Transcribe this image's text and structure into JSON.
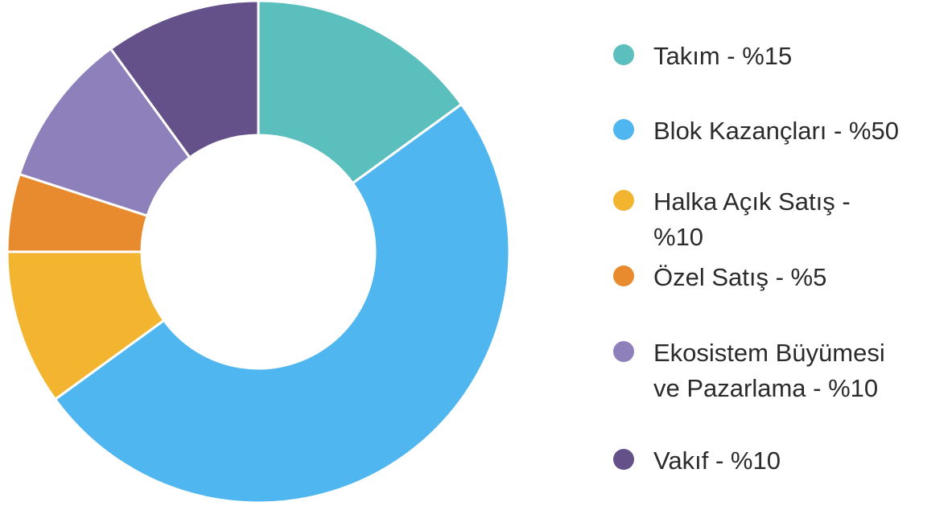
{
  "chart_data": {
    "type": "donut",
    "categories": [
      "Takım - %15",
      "Blok Kazançları - %50",
      "Halka Açık Satış - %10",
      "Özel Satış - %5",
      "Ekosistem Büyümesi ve Pazarlama - %10",
      "Vakıf - %10"
    ],
    "values": [
      15,
      50,
      10,
      5,
      10,
      10
    ],
    "colors": [
      "#5bbfbd",
      "#4fb6f0",
      "#f3b430",
      "#e88b2f",
      "#8d80bb",
      "#645189"
    ],
    "legend": "right"
  }
}
